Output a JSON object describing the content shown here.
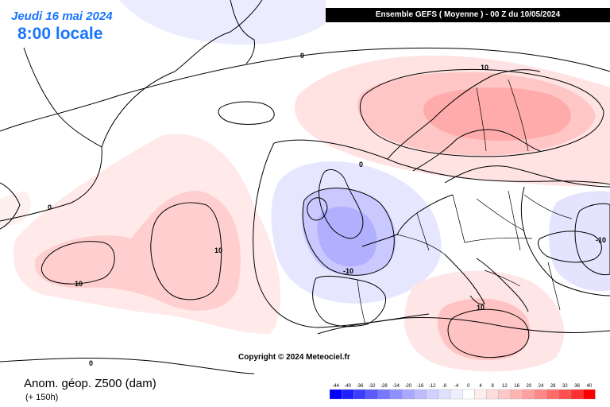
{
  "header": {
    "date": "Jeudi 16 mai 2024",
    "local_time": "8:00 locale",
    "run_info": "Ensemble GEFS  ( Moyenne )  -  00 Z du 10/05/2024"
  },
  "footer": {
    "title": "Anom. géop. Z500 (dam)",
    "lead_time": "(+ 150h)",
    "copyright": "Copyright © 2024 Meteociel.fr"
  },
  "map_labels": {
    "iso_0_a": "0",
    "iso_0_b": "0",
    "iso_0_c": "0",
    "iso_0_d": "0",
    "iso_10_scand": "10",
    "iso_10_atl_a": "10",
    "iso_10_atl_b": "10",
    "iso_neg10_uk": "-10",
    "iso_neg10_east": "-10",
    "iso_10_med": "10"
  },
  "color_scale": {
    "labels": [
      "-44",
      "-40",
      "-36",
      "-32",
      "-28",
      "-24",
      "-20",
      "-16",
      "-12",
      "-8",
      "-4",
      "0",
      "4",
      "8",
      "12",
      "16",
      "20",
      "24",
      "28",
      "32",
      "36",
      "40"
    ],
    "colors": [
      "#0000ff",
      "#1e1eff",
      "#3c3cff",
      "#5a5aff",
      "#7878ff",
      "#9090ff",
      "#a8a8ff",
      "#bcbcff",
      "#d0d0ff",
      "#e0e0ff",
      "#eeeeff",
      "#ffffff",
      "#ffeeee",
      "#ffdcdc",
      "#ffc8c8",
      "#ffb4b4",
      "#ffa0a0",
      "#ff8888",
      "#ff6c6c",
      "#ff5050",
      "#ff3030",
      "#ff0000"
    ]
  }
}
